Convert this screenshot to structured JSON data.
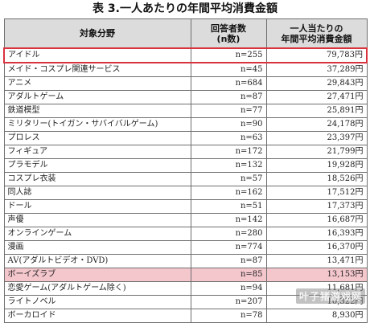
{
  "caption": "表 3.一人あたりの年間平均消費金額",
  "columns": {
    "category": "対象分野",
    "respondents_line1": "回答者数",
    "respondents_line2": "(n数)",
    "spend_line1": "一人当たりの",
    "spend_line2": "年間平均消費金額"
  },
  "rows": [
    {
      "category": "アイドル",
      "n": "n=255",
      "amount": "79,783円"
    },
    {
      "category": "メイド・コスプレ関連サービス",
      "n": "n=45",
      "amount": "37,289円"
    },
    {
      "category": "アニメ",
      "n": "n=684",
      "amount": "29,843円"
    },
    {
      "category": "アダルトゲーム",
      "n": "n=87",
      "amount": "27,471円"
    },
    {
      "category": "鉄道模型",
      "n": "n=77",
      "amount": "25,891円"
    },
    {
      "category": "ミリタリー(トイガン・サバイバルゲーム)",
      "n": "n=90",
      "amount": "24,178円"
    },
    {
      "category": "プロレス",
      "n": "n=63",
      "amount": "23,397円"
    },
    {
      "category": "フィギュア",
      "n": "n=172",
      "amount": "21,799円"
    },
    {
      "category": "プラモデル",
      "n": "n=132",
      "amount": "19,928円"
    },
    {
      "category": "コスプレ衣装",
      "n": "n=57",
      "amount": "18,526円"
    },
    {
      "category": "同人誌",
      "n": "n=162",
      "amount": "17,512円"
    },
    {
      "category": "ドール",
      "n": "n=51",
      "amount": "17,373円"
    },
    {
      "category": "声優",
      "n": "n=142",
      "amount": "16,687円"
    },
    {
      "category": "オンラインゲーム",
      "n": "n=280",
      "amount": "16,393円"
    },
    {
      "category": "漫画",
      "n": "n=774",
      "amount": "16,370円"
    },
    {
      "category": "AV(アダルトビデオ・DVD)",
      "n": "n=87",
      "amount": "13,471円"
    },
    {
      "category": "ボーイズラブ",
      "n": "n=85",
      "amount": "13,153円"
    },
    {
      "category": "恋愛ゲーム(アダルトゲーム除く)",
      "n": "n=94",
      "amount": "11,681円"
    },
    {
      "category": "ライトノベル",
      "n": "n=207",
      "amount": "10,322円"
    },
    {
      "category": "ボーカロイド",
      "n": "n=78",
      "amount": "8,930円"
    }
  ],
  "highlights": {
    "outlined_row_color": "#d9333f",
    "shaded_row_color": "#f4c7cd"
  },
  "watermark": "叶子猪游戏网"
}
